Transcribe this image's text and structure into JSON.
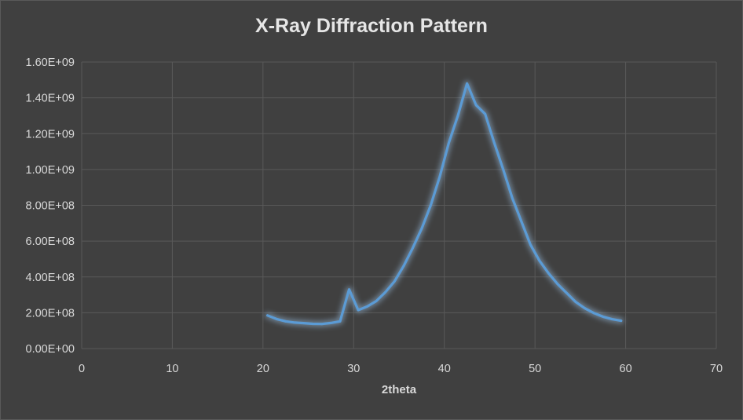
{
  "chart_data": {
    "type": "line",
    "title": "X-Ray Diffraction Pattern",
    "xlabel": "2theta",
    "ylabel": "",
    "xlim": [
      0,
      70
    ],
    "ylim": [
      0,
      1600000000
    ],
    "x_ticks": [
      0,
      10,
      20,
      30,
      40,
      50,
      60,
      70
    ],
    "x_tick_labels": [
      "0",
      "10",
      "20",
      "30",
      "40",
      "50",
      "60",
      "70"
    ],
    "y_ticks": [
      0,
      200000000,
      400000000,
      600000000,
      800000000,
      1000000000,
      1200000000,
      1400000000,
      1600000000
    ],
    "y_tick_labels": [
      "0.00E+00",
      "2.00E+08",
      "4.00E+08",
      "6.00E+08",
      "8.00E+08",
      "1.00E+09",
      "1.20E+09",
      "1.40E+09",
      "1.60E+09"
    ],
    "grid": true,
    "legend": "none",
    "colors": {
      "line": "#5b9bd5",
      "glow": "#9dc3e6",
      "grid": "#595959",
      "background": "#404040"
    },
    "series": [
      {
        "x": [
          20.5,
          21.5,
          22.5,
          23.5,
          24.5,
          25.5,
          26.5,
          27.5,
          28.5,
          29.5,
          30.5,
          31.5,
          32.5,
          33.5,
          34.5,
          35.5,
          36.5,
          37.5,
          38.5,
          39.5,
          40.5,
          41.5,
          42.5,
          43.5,
          44.5,
          45.5,
          46.5,
          47.5,
          48.5,
          49.5,
          50.5,
          51.5,
          52.5,
          53.5,
          54.5,
          55.5,
          56.5,
          57.5,
          58.5,
          59.5
        ],
        "values": [
          185000000,
          165000000,
          152000000,
          145000000,
          142000000,
          138000000,
          137000000,
          143000000,
          152000000,
          330000000,
          215000000,
          235000000,
          265000000,
          315000000,
          375000000,
          460000000,
          560000000,
          670000000,
          800000000,
          960000000,
          1150000000,
          1300000000,
          1480000000,
          1360000000,
          1310000000,
          1150000000,
          1000000000,
          840000000,
          710000000,
          580000000,
          490000000,
          420000000,
          360000000,
          310000000,
          260000000,
          225000000,
          198000000,
          178000000,
          164000000,
          155000000
        ]
      }
    ]
  }
}
